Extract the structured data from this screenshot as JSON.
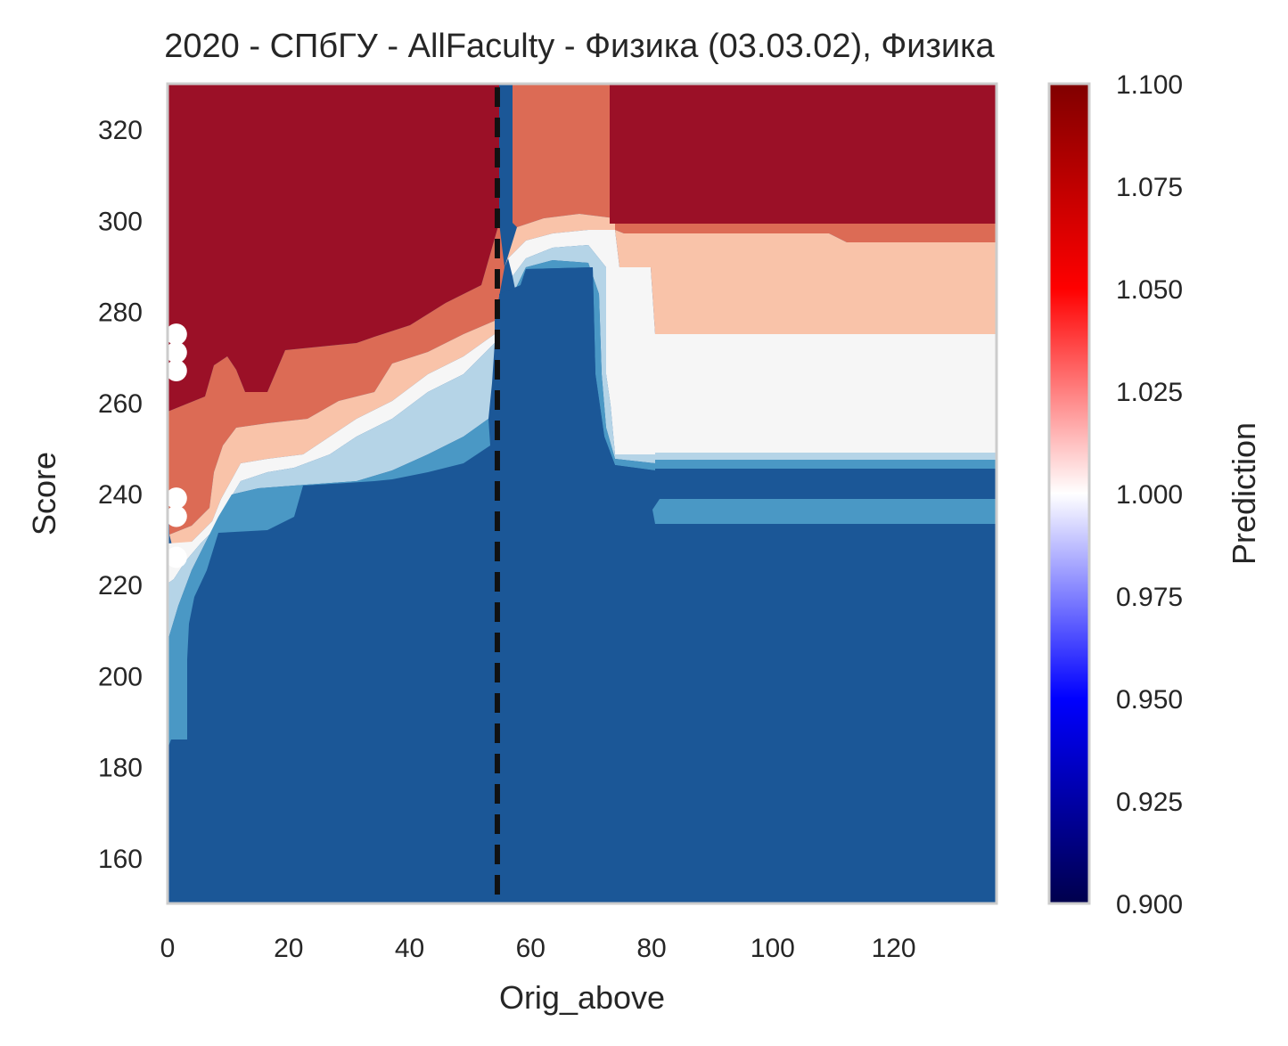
{
  "chart_data": {
    "type": "heatmap",
    "subtype": "filled-contour",
    "title": "2020 - СПбГУ - AllFaculty - Физика (03.03.02), Физика",
    "xlabel": "Orig_above",
    "ylabel": "Score",
    "xlim": [
      0,
      137
    ],
    "ylim": [
      150,
      330
    ],
    "xticks": [
      "0",
      "20",
      "40",
      "60",
      "80",
      "100",
      "120"
    ],
    "yticks": [
      "160",
      "180",
      "200",
      "220",
      "240",
      "260",
      "280",
      "300",
      "320"
    ],
    "grid": false,
    "vertical_line": {
      "x": 54.5,
      "style": "dashed",
      "color": "#111111"
    },
    "colorbar": {
      "label": "Prediction",
      "min": 0.9,
      "max": 1.1,
      "ticks": [
        "0.900",
        "0.925",
        "0.950",
        "0.975",
        "1.000",
        "1.025",
        "1.050",
        "1.075",
        "1.100"
      ],
      "colormap": "seismic",
      "stops": [
        "#00004c",
        "#0000ff",
        "#ffffff",
        "#ff0000",
        "#800000"
      ]
    },
    "levels": [
      {
        "value": 0.98,
        "color": "#1b5797"
      },
      {
        "value": 0.99,
        "color": "#4a98c5"
      },
      {
        "value": 0.995,
        "color": "#b5d4e7"
      },
      {
        "value": 1.0,
        "color": "#f6f6f6"
      },
      {
        "value": 1.01,
        "color": "#f9c3a9"
      },
      {
        "value": 1.02,
        "color": "#dc6b55"
      },
      {
        "value": 1.03,
        "color": "#9b1027"
      }
    ],
    "regions": [
      {
        "level": 1.0,
        "x": [
          55,
          137
        ],
        "y": [
          249,
          275
        ]
      },
      {
        "level": 1.01,
        "x": [
          80,
          137
        ],
        "y": [
          275,
          295
        ]
      },
      {
        "level": 1.02,
        "x": [
          73,
          137
        ],
        "y": [
          295,
          299
        ]
      },
      {
        "level": 1.03,
        "x": [
          73,
          137
        ],
        "y": [
          299,
          330
        ]
      },
      {
        "level": 1.02,
        "x": [
          58,
          73
        ],
        "y": [
          300,
          330
        ]
      },
      {
        "level": 0.99,
        "x": [
          80,
          137
        ],
        "y": [
          234,
          239
        ]
      }
    ],
    "points": [
      {
        "x": 1,
        "y": 275
      },
      {
        "x": 1,
        "y": 271
      },
      {
        "x": 1,
        "y": 267
      },
      {
        "x": 1,
        "y": 239
      },
      {
        "x": 1,
        "y": 235
      },
      {
        "x": 1,
        "y": 226
      }
    ]
  }
}
